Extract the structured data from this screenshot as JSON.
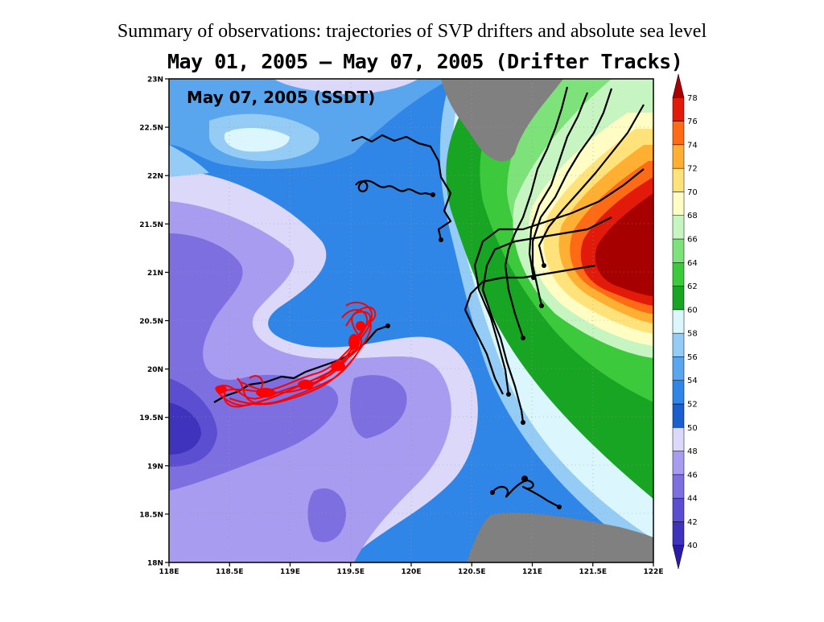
{
  "slide": {
    "title": "Summary of observations: trajectories of SVP drifters and absolute sea level"
  },
  "figure": {
    "title": "May 01, 2005 – May 07, 2005 (Drifter Tracks)",
    "panel_label": "May 07, 2005 (SSDT)",
    "lon_ticks": [
      "118E",
      "118.5E",
      "119E",
      "119.5E",
      "120E",
      "120.5E",
      "121E",
      "121.5E",
      "122E"
    ],
    "lat_ticks": [
      "18N",
      "18.5N",
      "19N",
      "19.5N",
      "20N",
      "20.5N",
      "21N",
      "21.5N",
      "22N",
      "22.5N",
      "23N"
    ],
    "colorbar": {
      "levels": [
        "40",
        "42",
        "44",
        "46",
        "48",
        "50",
        "52",
        "54",
        "56",
        "58",
        "60",
        "62",
        "64",
        "66",
        "68",
        "70",
        "72",
        "74",
        "76",
        "78"
      ],
      "colors": [
        "#2a1aa6",
        "#3f33bd",
        "#5c4ed0",
        "#7e6fe0",
        "#a89cf0",
        "#dcd8fa",
        "#1a5fd0",
        "#2f86e6",
        "#5aa6ee",
        "#95ccf6",
        "#dcf6fd",
        "#17a523",
        "#3cc93c",
        "#7de27a",
        "#c7f5c1",
        "#fffcc4",
        "#ffe27a",
        "#ffb032",
        "#ff6a14",
        "#e21a0a",
        "#a60000"
      ],
      "land_color": "#808080"
    }
  }
}
